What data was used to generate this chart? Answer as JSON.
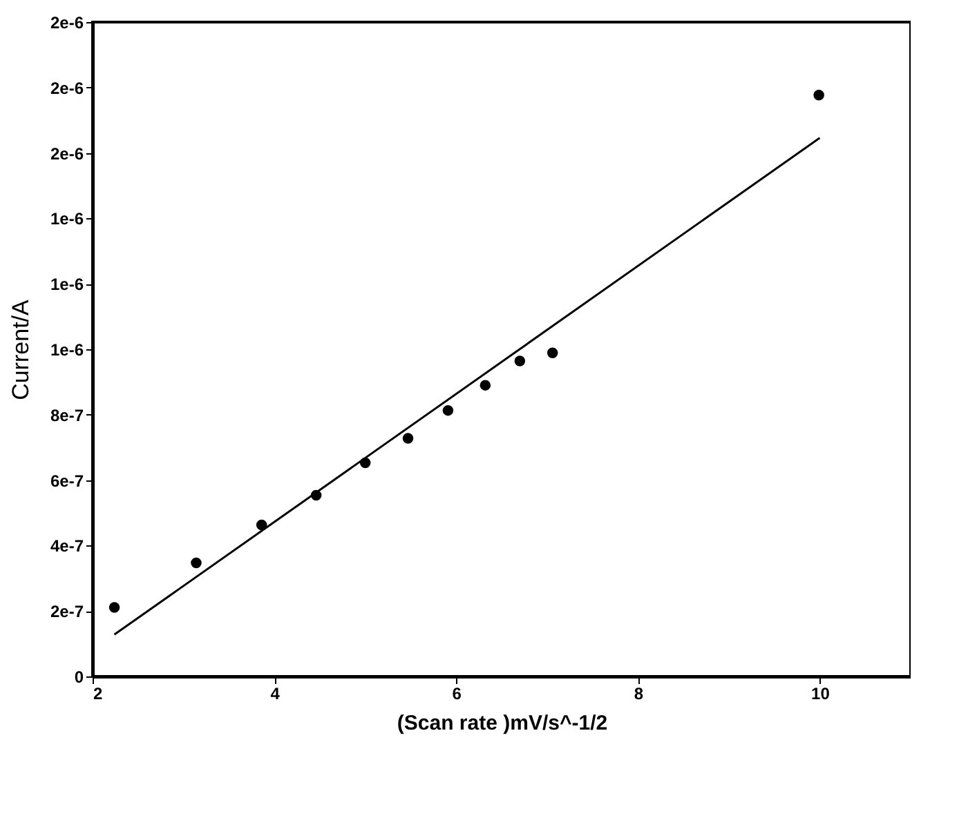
{
  "chart_data": {
    "type": "scatter",
    "xlabel": "(Scan rate )mV/s^-1/2",
    "ylabel": "Current/A",
    "xlim": [
      2,
      11
    ],
    "xticks": [
      2,
      4,
      6,
      8,
      10
    ],
    "ylim": [
      0,
      2e-06
    ],
    "yticks": [
      0,
      {
        "value": 2e-07,
        "label": "2e-7"
      },
      {
        "value": 4e-07,
        "label": "4e-7"
      },
      {
        "value": 6e-07,
        "label": "6e-7"
      },
      {
        "value": 8e-07,
        "label": "8e-7"
      },
      {
        "value": 1e-06,
        "label": "1e-6"
      },
      {
        "value": 1.2e-06,
        "label": "1e-6"
      },
      {
        "value": 1.4e-06,
        "label": "1e-6"
      },
      {
        "value": 1.6e-06,
        "label": "2e-6"
      },
      {
        "value": 1.8e-06,
        "label": "2e-6"
      },
      {
        "value": 2e-06,
        "label": "2e-6"
      }
    ],
    "grid": false,
    "series": [
      {
        "marker": "circle",
        "color": "#000000",
        "x": [
          2.24,
          3.14,
          3.86,
          4.46,
          5.0,
          5.47,
          5.91,
          6.32,
          6.7,
          7.06,
          9.99
        ],
        "values": [
          2.11e-07,
          3.47e-07,
          4.63e-07,
          5.54e-07,
          6.53e-07,
          7.28e-07,
          8.13e-07,
          8.9e-07,
          9.64e-07,
          9.89e-07,
          1.777e-06
        ]
      },
      {
        "type": "line",
        "color": "#000000",
        "x": [
          2.24,
          10.0
        ],
        "values": [
          1.28e-07,
          1.646e-06
        ]
      }
    ]
  }
}
